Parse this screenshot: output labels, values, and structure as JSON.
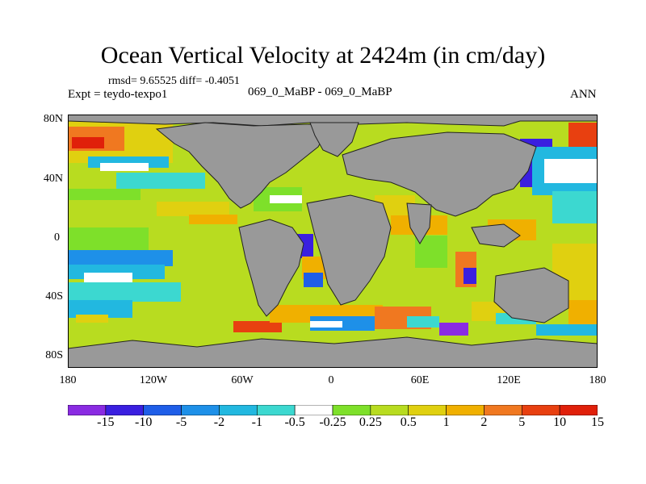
{
  "title": "Ocean Vertical Velocity at 2424m (in cm/day)",
  "stats": "rmsd= 9.65525 diff= -0.4051",
  "experiment": "Expt = teydo-texpo1",
  "center_label": "069_0_MaBP - 069_0_MaBP",
  "season": "ANN",
  "lat_labels": [
    "80N",
    "40N",
    "0",
    "40S",
    "80S"
  ],
  "lon_labels": [
    "180",
    "120W",
    "60W",
    "0",
    "60E",
    "120E",
    "180"
  ],
  "land_color": "#999999",
  "colorbar": {
    "colors": [
      "#8a2be2",
      "#3a1fe0",
      "#1f5ee8",
      "#1e90e8",
      "#22b8e0",
      "#3cd8d0",
      "#ffffff",
      "#7ee02a",
      "#b8dc20",
      "#e0d010",
      "#f0b000",
      "#f07820",
      "#e84010",
      "#e0200a"
    ],
    "labels": [
      "-15",
      "-10",
      "-5",
      "-2",
      "-1",
      "-0.5",
      "-0.25",
      "0.25",
      "0.5",
      "1",
      "2",
      "5",
      "10",
      "15"
    ]
  }
}
